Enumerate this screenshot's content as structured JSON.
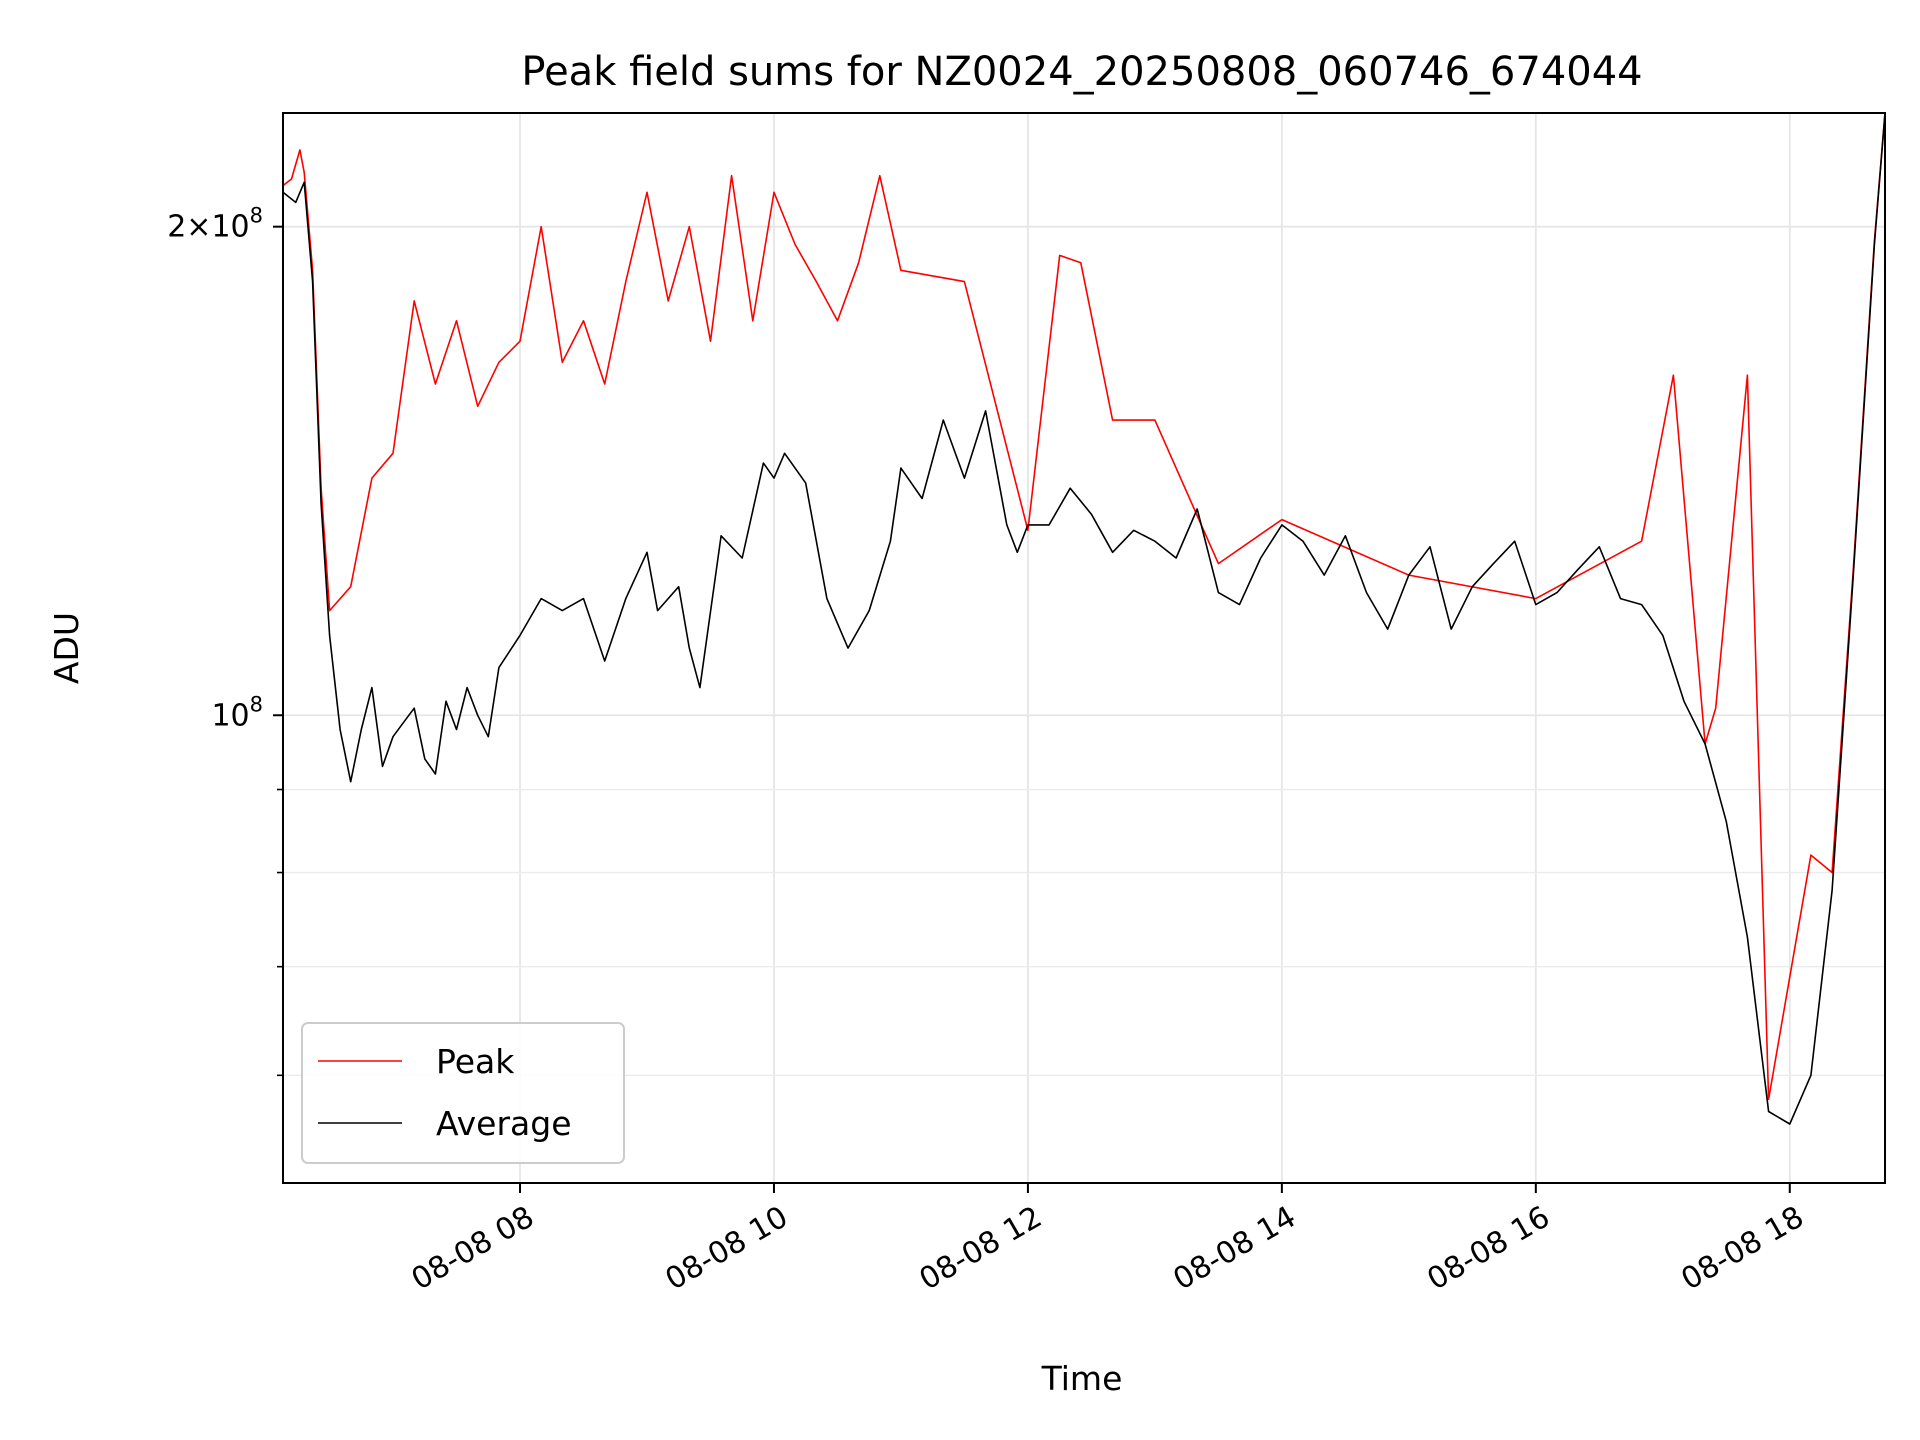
{
  "chart_data": {
    "type": "line",
    "title": "Peak field sums for NZ0024_20250808_060746_674044",
    "xlabel": "Time",
    "ylabel": "ADU",
    "yscale": "log",
    "ylim": [
      51500000,
      235000000
    ],
    "xlim": [
      "2025-08-08 06:08",
      "2025-08-08 18:45"
    ],
    "x_ticks": [
      {
        "at": "2025-08-08 08:00",
        "label": "08-08 08"
      },
      {
        "at": "2025-08-08 10:00",
        "label": "08-08 10"
      },
      {
        "at": "2025-08-08 12:00",
        "label": "08-08 12"
      },
      {
        "at": "2025-08-08 14:00",
        "label": "08-08 14"
      },
      {
        "at": "2025-08-08 16:00",
        "label": "08-08 16"
      },
      {
        "at": "2025-08-08 18:00",
        "label": "08-08 18"
      }
    ],
    "y_major_ticks": [
      {
        "value": 100000000,
        "label": "10^8",
        "mantissa": "",
        "exponent": "8"
      },
      {
        "value": 200000000,
        "label": "2×10^8",
        "mantissa": "2×",
        "exponent": "8"
      }
    ],
    "y_minor_ticks": [
      60000000,
      70000000,
      80000000,
      90000000
    ],
    "grid": true,
    "legend_position": "lower-left",
    "series": [
      {
        "name": "Average",
        "color": "#000000",
        "points": [
          [
            "2025-08-08 06:08",
            210000000
          ],
          [
            "2025-08-08 06:14",
            207000000
          ],
          [
            "2025-08-08 06:18",
            213000000
          ],
          [
            "2025-08-08 06:22",
            185000000
          ],
          [
            "2025-08-08 06:26",
            135000000
          ],
          [
            "2025-08-08 06:30",
            112000000
          ],
          [
            "2025-08-08 06:35",
            98000000
          ],
          [
            "2025-08-08 06:40",
            91000000
          ],
          [
            "2025-08-08 06:45",
            98000000
          ],
          [
            "2025-08-08 06:50",
            104000000
          ],
          [
            "2025-08-08 06:55",
            93000000
          ],
          [
            "2025-08-08 07:00",
            97000000
          ],
          [
            "2025-08-08 07:05",
            99000000
          ],
          [
            "2025-08-08 07:10",
            101000000
          ],
          [
            "2025-08-08 07:15",
            94000000
          ],
          [
            "2025-08-08 07:20",
            92000000
          ],
          [
            "2025-08-08 07:25",
            102000000
          ],
          [
            "2025-08-08 07:30",
            98000000
          ],
          [
            "2025-08-08 07:35",
            104000000
          ],
          [
            "2025-08-08 07:40",
            100000000
          ],
          [
            "2025-08-08 07:45",
            97000000
          ],
          [
            "2025-08-08 07:50",
            107000000
          ],
          [
            "2025-08-08 08:00",
            112000000
          ],
          [
            "2025-08-08 08:10",
            118000000
          ],
          [
            "2025-08-08 08:20",
            116000000
          ],
          [
            "2025-08-08 08:30",
            118000000
          ],
          [
            "2025-08-08 08:40",
            108000000
          ],
          [
            "2025-08-08 08:50",
            118000000
          ],
          [
            "2025-08-08 09:00",
            126000000
          ],
          [
            "2025-08-08 09:05",
            116000000
          ],
          [
            "2025-08-08 09:15",
            120000000
          ],
          [
            "2025-08-08 09:20",
            110000000
          ],
          [
            "2025-08-08 09:25",
            104000000
          ],
          [
            "2025-08-08 09:35",
            129000000
          ],
          [
            "2025-08-08 09:45",
            125000000
          ],
          [
            "2025-08-08 09:55",
            143000000
          ],
          [
            "2025-08-08 10:00",
            140000000
          ],
          [
            "2025-08-08 10:05",
            145000000
          ],
          [
            "2025-08-08 10:15",
            139000000
          ],
          [
            "2025-08-08 10:25",
            118000000
          ],
          [
            "2025-08-08 10:35",
            110000000
          ],
          [
            "2025-08-08 10:45",
            116000000
          ],
          [
            "2025-08-08 10:55",
            128000000
          ],
          [
            "2025-08-08 11:00",
            142000000
          ],
          [
            "2025-08-08 11:10",
            136000000
          ],
          [
            "2025-08-08 11:20",
            152000000
          ],
          [
            "2025-08-08 11:30",
            140000000
          ],
          [
            "2025-08-08 11:40",
            154000000
          ],
          [
            "2025-08-08 11:50",
            131000000
          ],
          [
            "2025-08-08 11:55",
            126000000
          ],
          [
            "2025-08-08 12:00",
            131000000
          ],
          [
            "2025-08-08 12:10",
            131000000
          ],
          [
            "2025-08-08 12:20",
            138000000
          ],
          [
            "2025-08-08 12:30",
            133000000
          ],
          [
            "2025-08-08 12:40",
            126000000
          ],
          [
            "2025-08-08 12:50",
            130000000
          ],
          [
            "2025-08-08 13:00",
            128000000
          ],
          [
            "2025-08-08 13:10",
            125000000
          ],
          [
            "2025-08-08 13:20",
            134000000
          ],
          [
            "2025-08-08 13:30",
            119000000
          ],
          [
            "2025-08-08 13:40",
            117000000
          ],
          [
            "2025-08-08 13:50",
            125000000
          ],
          [
            "2025-08-08 14:00",
            131000000
          ],
          [
            "2025-08-08 14:10",
            128000000
          ],
          [
            "2025-08-08 14:20",
            122000000
          ],
          [
            "2025-08-08 14:30",
            129000000
          ],
          [
            "2025-08-08 14:40",
            119000000
          ],
          [
            "2025-08-08 14:50",
            113000000
          ],
          [
            "2025-08-08 15:00",
            122000000
          ],
          [
            "2025-08-08 15:10",
            127000000
          ],
          [
            "2025-08-08 15:20",
            113000000
          ],
          [
            "2025-08-08 15:30",
            120000000
          ],
          [
            "2025-08-08 15:40",
            124000000
          ],
          [
            "2025-08-08 15:50",
            128000000
          ],
          [
            "2025-08-08 16:00",
            117000000
          ],
          [
            "2025-08-08 16:10",
            119000000
          ],
          [
            "2025-08-08 16:20",
            123000000
          ],
          [
            "2025-08-08 16:30",
            127000000
          ],
          [
            "2025-08-08 16:40",
            118000000
          ],
          [
            "2025-08-08 16:50",
            117000000
          ],
          [
            "2025-08-08 17:00",
            112000000
          ],
          [
            "2025-08-08 17:10",
            102000000
          ],
          [
            "2025-08-08 17:20",
            96000000
          ],
          [
            "2025-08-08 17:30",
            86000000
          ],
          [
            "2025-08-08 17:40",
            73000000
          ],
          [
            "2025-08-08 17:50",
            57000000
          ],
          [
            "2025-08-08 18:00",
            56000000
          ],
          [
            "2025-08-08 18:10",
            60000000
          ],
          [
            "2025-08-08 18:20",
            78000000
          ],
          [
            "2025-08-08 18:30",
            122000000
          ],
          [
            "2025-08-08 18:40",
            195000000
          ],
          [
            "2025-08-08 18:45",
            235000000
          ]
        ]
      },
      {
        "name": "Peak",
        "color": "#ff0000",
        "points": [
          [
            "2025-08-08 06:08",
            212000000
          ],
          [
            "2025-08-08 06:12",
            214000000
          ],
          [
            "2025-08-08 06:16",
            223000000
          ],
          [
            "2025-08-08 06:18",
            216000000
          ],
          [
            "2025-08-08 06:22",
            188000000
          ],
          [
            "2025-08-08 06:26",
            138000000
          ],
          [
            "2025-08-08 06:30",
            116000000
          ],
          [
            "2025-08-08 06:40",
            120000000
          ],
          [
            "2025-08-08 06:50",
            140000000
          ],
          [
            "2025-08-08 07:00",
            145000000
          ],
          [
            "2025-08-08 07:10",
            180000000
          ],
          [
            "2025-08-08 07:20",
            160000000
          ],
          [
            "2025-08-08 07:30",
            175000000
          ],
          [
            "2025-08-08 07:40",
            155000000
          ],
          [
            "2025-08-08 07:50",
            165000000
          ],
          [
            "2025-08-08 08:00",
            170000000
          ],
          [
            "2025-08-08 08:10",
            200000000
          ],
          [
            "2025-08-08 08:20",
            165000000
          ],
          [
            "2025-08-08 08:30",
            175000000
          ],
          [
            "2025-08-08 08:40",
            160000000
          ],
          [
            "2025-08-08 08:50",
            185000000
          ],
          [
            "2025-08-08 09:00",
            210000000
          ],
          [
            "2025-08-08 09:10",
            180000000
          ],
          [
            "2025-08-08 09:20",
            200000000
          ],
          [
            "2025-08-08 09:30",
            170000000
          ],
          [
            "2025-08-08 09:40",
            215000000
          ],
          [
            "2025-08-08 09:50",
            175000000
          ],
          [
            "2025-08-08 10:00",
            210000000
          ],
          [
            "2025-08-08 10:10",
            195000000
          ],
          [
            "2025-08-08 10:20",
            185000000
          ],
          [
            "2025-08-08 10:30",
            175000000
          ],
          [
            "2025-08-08 10:40",
            190000000
          ],
          [
            "2025-08-08 10:50",
            215000000
          ],
          [
            "2025-08-08 11:00",
            188000000
          ],
          [
            "2025-08-08 11:30",
            185000000
          ],
          [
            "2025-08-08 12:00",
            130000000
          ],
          [
            "2025-08-08 12:15",
            192000000
          ],
          [
            "2025-08-08 12:25",
            190000000
          ],
          [
            "2025-08-08 12:40",
            152000000
          ],
          [
            "2025-08-08 13:00",
            152000000
          ],
          [
            "2025-08-08 13:30",
            124000000
          ],
          [
            "2025-08-08 14:00",
            132000000
          ],
          [
            "2025-08-08 15:00",
            122000000
          ],
          [
            "2025-08-08 16:00",
            118000000
          ],
          [
            "2025-08-08 16:50",
            128000000
          ],
          [
            "2025-08-08 17:05",
            162000000
          ],
          [
            "2025-08-08 17:20",
            96000000
          ],
          [
            "2025-08-08 17:25",
            101000000
          ],
          [
            "2025-08-08 17:40",
            162000000
          ],
          [
            "2025-08-08 17:50",
            58000000
          ],
          [
            "2025-08-08 18:10",
            82000000
          ],
          [
            "2025-08-08 18:20",
            80000000
          ],
          [
            "2025-08-08 18:30",
            123000000
          ],
          [
            "2025-08-08 18:40",
            196000000
          ],
          [
            "2025-08-08 18:45",
            235000000
          ]
        ]
      }
    ]
  }
}
